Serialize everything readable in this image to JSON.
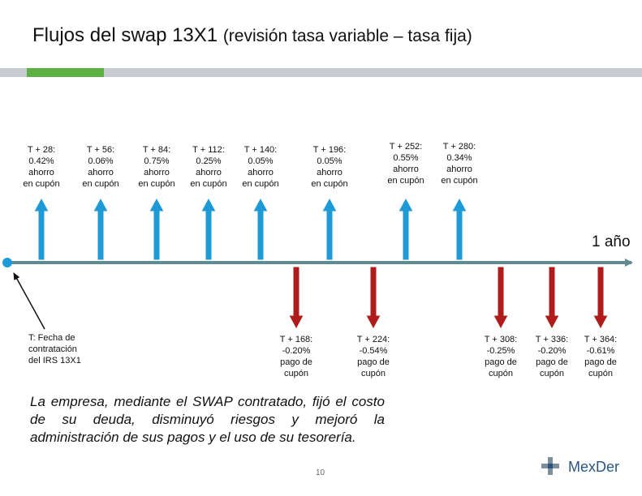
{
  "slide": {
    "title": "Flujos del swap 13X1",
    "subtitle": "(revisión tasa variable – tasa fija)",
    "year_label": "1 año",
    "start_label": [
      "T: Fecha de",
      "contratación",
      "del IRS 13X1"
    ],
    "paragraph": "La empresa, mediante el SWAP contratado, fijó el costo de su deuda, disminuyó riesgos y mejoró la administración de sus pagos y el uso de su tesorería.",
    "page_number": "10",
    "logo_text": "MexDer"
  },
  "colors": {
    "inflow": "#1e9ad6",
    "outflow": "#b01c1c",
    "axis": "#5f8a8f",
    "start_dot": "#1e9ad6",
    "band": "#c8cbcf",
    "accent": "#5db043"
  },
  "savings": [
    {
      "day": "T + 28:",
      "rate": "0.42%",
      "kind": [
        "ahorro",
        "en cupón"
      ]
    },
    {
      "day": "T + 56:",
      "rate": "0.06%",
      "kind": [
        "ahorro",
        "en cupón"
      ]
    },
    {
      "day": "T + 84:",
      "rate": "0.75%",
      "kind": [
        "ahorro",
        "en cupón"
      ]
    },
    {
      "day": "T + 112:",
      "rate": "0.25%",
      "kind": [
        "ahorro",
        "en cupón"
      ]
    },
    {
      "day": "T + 140:",
      "rate": "0.05%",
      "kind": [
        "ahorro",
        "en cupón"
      ]
    },
    {
      "day": "T + 196:",
      "rate": "0.05%",
      "kind": [
        "ahorro",
        "en cupón"
      ]
    },
    {
      "day": "T + 252:",
      "rate": "0.55%",
      "kind": [
        "ahorro",
        "en cupón"
      ]
    },
    {
      "day": "T + 280:",
      "rate": "0.34%",
      "kind": [
        "ahorro",
        "en cupón"
      ]
    }
  ],
  "payments": [
    {
      "day": "T + 168:",
      "rate": "-0.20%",
      "kind": [
        "pago de",
        "cupón"
      ]
    },
    {
      "day": "T + 224:",
      "rate": "-0.54%",
      "kind": [
        "pago de",
        "cupón"
      ]
    },
    {
      "day": "T + 308:",
      "rate": "-0.25%",
      "kind": [
        "pago de",
        "cupón"
      ]
    },
    {
      "day": "T + 336:",
      "rate": "-0.20%",
      "kind": [
        "pago de",
        "cupón"
      ]
    },
    {
      "day": "T + 364:",
      "rate": "-0.61%",
      "kind": [
        "pago de",
        "cupón"
      ]
    }
  ]
}
